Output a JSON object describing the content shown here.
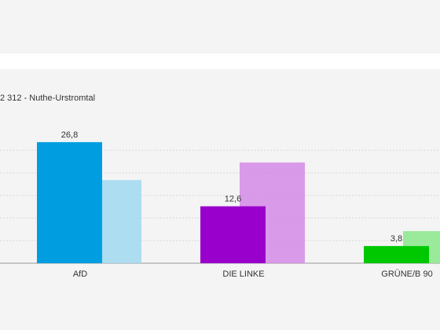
{
  "chart_data": {
    "type": "bar",
    "title": "2 312 - Nuthe-Urstromtal",
    "categories": [
      "AfD",
      "DIE LINKE",
      "GRÜNE/B 90"
    ],
    "series": [
      {
        "colors": [
          "#a0d8f0",
          "#d48ae6",
          "#8be68b"
        ],
        "values": [
          18.4,
          22.3,
          7.1
        ],
        "opacity": 0.85
      },
      {
        "colors": [
          "#009ee0",
          "#9900cc",
          "#00c800"
        ],
        "values": [
          26.8,
          12.6,
          3.8
        ],
        "value_labels": [
          "26,8",
          "12,6",
          "3,8"
        ]
      }
    ],
    "ylim": [
      0,
      30
    ],
    "yticks": [
      0,
      5,
      10,
      15,
      20,
      25
    ],
    "grid": true
  }
}
